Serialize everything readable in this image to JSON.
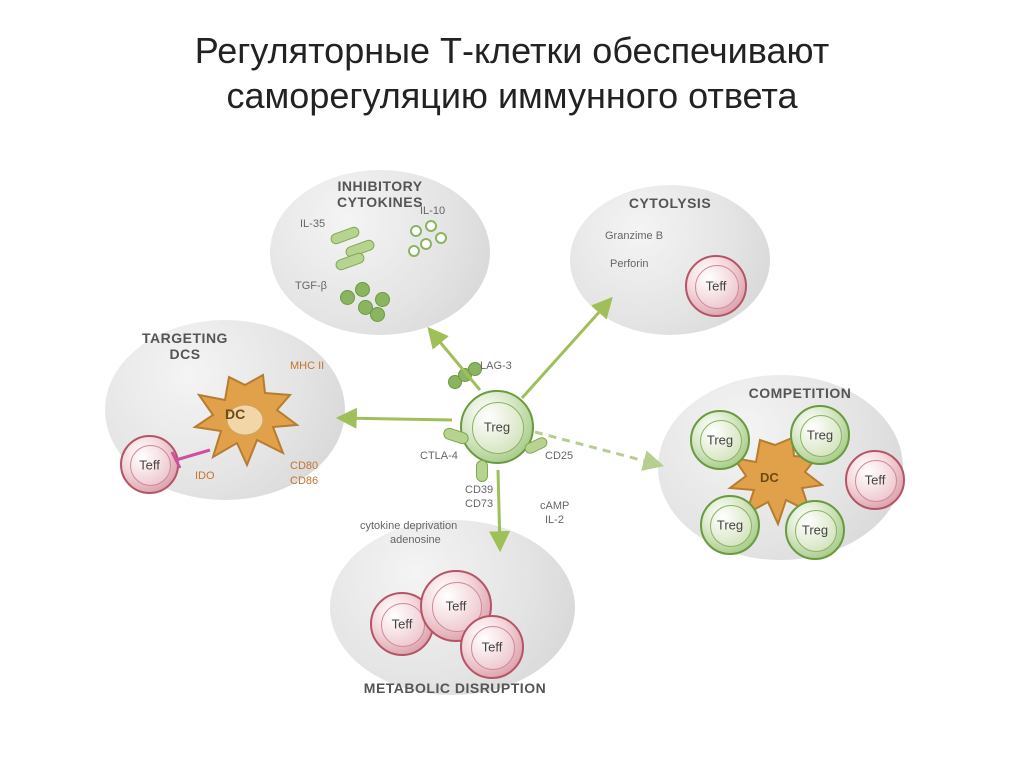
{
  "title": "Регуляторные Т-клетки обеспечивают\nсаморегуляцию иммунного ответа",
  "bubbles": {
    "cytokines": {
      "label": "INHIBITORY CYTOKINES"
    },
    "cytolysis": {
      "label": "CYTOLYSIS"
    },
    "targeting": {
      "label": "TARGETING DCS"
    },
    "competition": {
      "label": "COMPETITION"
    },
    "metabolic": {
      "label": "METABOLIC DISRUPTION"
    }
  },
  "cells": {
    "treg": "Treg",
    "teff": "Teff",
    "dc": "DC"
  },
  "labels": {
    "il35": "IL-35",
    "il10": "IL-10",
    "tgfb": "TGF-β",
    "granzime": "Granzime B",
    "perforin": "Perforin",
    "mhc2": "MHC II",
    "ido": "IDO",
    "cd80": "CD80",
    "cd86": "CD86",
    "lag3": "LAG-3",
    "ctla4": "CTLA-4",
    "cd39": "CD39",
    "cd73": "CD73",
    "cd25": "CD25",
    "camp": "cAMP",
    "il2": "IL-2",
    "cytokdep": "cytokine deprivation",
    "adenosine": "adenosine"
  },
  "colors": {
    "arrow": "#9fbf59",
    "arrowDash": "#b7cf8e",
    "dcFill": "#e0a14a",
    "dcStroke": "#b67c2f",
    "inhib": "#d04fa1"
  }
}
